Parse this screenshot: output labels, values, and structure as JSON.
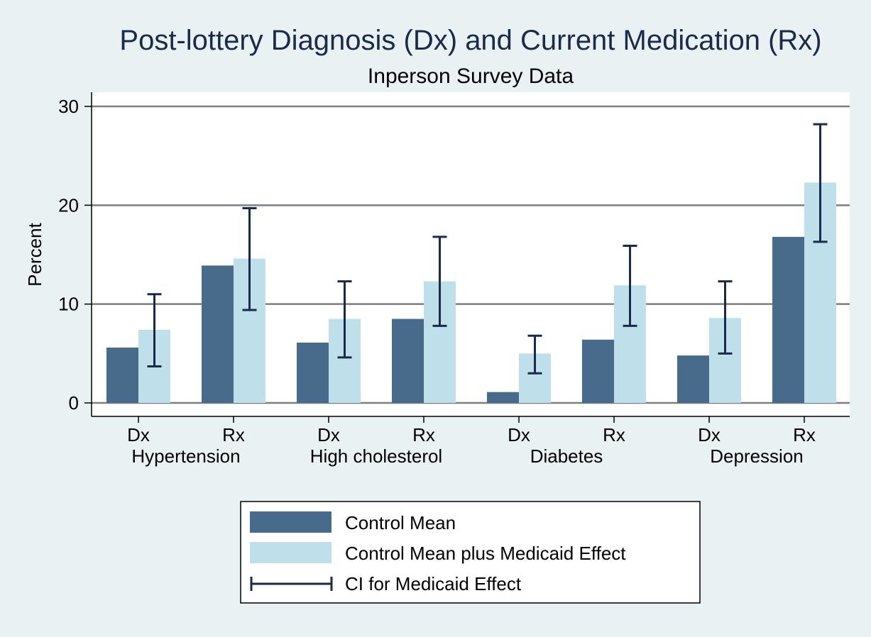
{
  "chart_data": {
    "type": "bar",
    "title": "Post-lottery Diagnosis (Dx) and Current Medication (Rx)",
    "subtitle": "Inperson Survey Data",
    "ylabel": "Percent",
    "ylim": [
      0,
      30
    ],
    "yticks": [
      0,
      10,
      20,
      30
    ],
    "grid": true,
    "legend_position": "bottom",
    "groups": [
      "Hypertension",
      "High cholesterol",
      "Diabetes",
      "Depression"
    ],
    "categories": [
      "Dx",
      "Rx",
      "Dx",
      "Rx",
      "Dx",
      "Rx",
      "Dx",
      "Rx"
    ],
    "series": [
      {
        "name": "Control Mean",
        "color": "#486a8b",
        "values": [
          5.6,
          13.9,
          6.1,
          8.5,
          1.1,
          6.4,
          4.8,
          16.8
        ]
      },
      {
        "name": "Control Mean plus Medicaid Effect",
        "color": "#bfe0ea",
        "values": [
          7.4,
          14.6,
          8.5,
          12.3,
          5.0,
          11.9,
          8.6,
          22.3
        ]
      }
    ],
    "ci": {
      "name": "CI for Medicaid Effect",
      "color": "#1a2a4a",
      "low": [
        3.7,
        9.4,
        4.6,
        7.8,
        3.0,
        7.8,
        5.0,
        16.3
      ],
      "high": [
        11.0,
        19.7,
        12.3,
        16.8,
        6.8,
        15.9,
        12.3,
        28.2
      ]
    },
    "colors": {
      "background": "#eaf1f3",
      "plot_background": "#ffffff",
      "grid": "#7b7f82",
      "title": "#1a2a4a"
    }
  }
}
